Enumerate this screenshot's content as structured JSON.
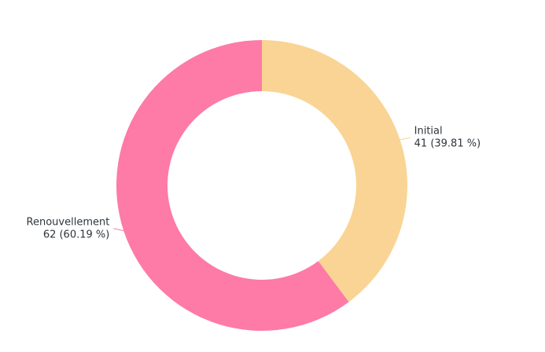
{
  "chart_data": {
    "type": "donut",
    "categories": [
      "Initial",
      "Renouvellement"
    ],
    "values": [
      41,
      62
    ],
    "value_labels": [
      "41 (39.81 %)",
      "62 (60.19 %)"
    ],
    "colors": [
      "#f9d494",
      "#fd7ba6"
    ]
  }
}
